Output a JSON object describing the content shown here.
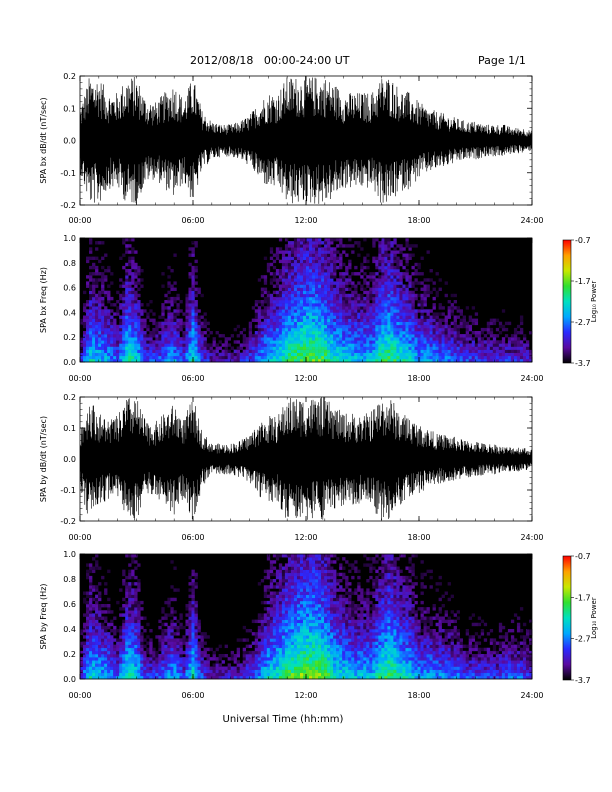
{
  "header": {
    "title": "2012/08/18   00:00-24:00 UT",
    "page": "Page 1/1"
  },
  "colors": {
    "background": "#ffffff",
    "trace": "#000000",
    "spectrogram_background": "#000000"
  },
  "colorbar": {
    "label": "Log₁₀ Power",
    "ticks": [
      "-0.7",
      "-1.7",
      "-2.7",
      "-3.7"
    ],
    "range": [
      -3.7,
      -0.7
    ],
    "stops": [
      "#000000",
      "#5a0aa0",
      "#2a2aff",
      "#00a8ff",
      "#00e0c0",
      "#30e030",
      "#c8e800",
      "#ffa000",
      "#ff0000"
    ]
  },
  "xaxis": {
    "ticks": [
      "00:00",
      "06:00",
      "12:00",
      "18:00",
      "24:00"
    ],
    "label": "Universal Time (hh:mm)"
  },
  "chart_data": [
    {
      "type": "line",
      "ylabel": "SPA bx dB/dt (nT/sec)",
      "xlim": [
        0,
        24
      ],
      "ylim": [
        -0.2,
        0.2
      ],
      "yticks": [
        "0.2",
        "0.1",
        "0.0",
        "-0.1",
        "-0.2"
      ],
      "series": [
        {
          "x": [
            0,
            0.5,
            1,
            1.5,
            2,
            2.5,
            3,
            3.5,
            4,
            4.5,
            5,
            5.5,
            6,
            6.5,
            7,
            7.5,
            8,
            8.5,
            9,
            9.5,
            10,
            10.5,
            11,
            11.5,
            12,
            12.5,
            13,
            13.5,
            14,
            14.5,
            15,
            15.5,
            16,
            16.5,
            17,
            17.5,
            18,
            18.5,
            19,
            19.5,
            20,
            20.5,
            21,
            21.5,
            22,
            22.5,
            23,
            23.5,
            24
          ],
          "amplitude": [
            0.1,
            0.2,
            0.2,
            0.15,
            0.15,
            0.2,
            0.2,
            0.13,
            0.12,
            0.15,
            0.18,
            0.13,
            0.2,
            0.09,
            0.06,
            0.05,
            0.05,
            0.06,
            0.08,
            0.12,
            0.15,
            0.15,
            0.2,
            0.2,
            0.2,
            0.2,
            0.2,
            0.18,
            0.15,
            0.15,
            0.15,
            0.15,
            0.2,
            0.2,
            0.16,
            0.15,
            0.12,
            0.1,
            0.09,
            0.08,
            0.07,
            0.06,
            0.06,
            0.05,
            0.05,
            0.05,
            0.04,
            0.04,
            0.03
          ]
        }
      ]
    },
    {
      "type": "heatmap",
      "ylabel": "SPA bx Freq (Hz)",
      "xlim": [
        0,
        24
      ],
      "ylim": [
        0,
        1.0
      ],
      "yticks": [
        "1.0",
        "0.8",
        "0.6",
        "0.4",
        "0.2",
        "0.0"
      ],
      "activity": [
        0.2,
        0.55,
        0.5,
        0.45,
        0.35,
        0.6,
        0.55,
        0.3,
        0.3,
        0.4,
        0.45,
        0.3,
        0.6,
        0.3,
        0.2,
        0.2,
        0.2,
        0.22,
        0.28,
        0.4,
        0.5,
        0.55,
        0.65,
        0.7,
        0.75,
        0.75,
        0.7,
        0.6,
        0.55,
        0.5,
        0.5,
        0.5,
        0.65,
        0.7,
        0.6,
        0.55,
        0.45,
        0.45,
        0.4,
        0.38,
        0.35,
        0.3,
        0.3,
        0.28,
        0.28,
        0.27,
        0.26,
        0.25,
        0.2
      ]
    },
    {
      "type": "line",
      "ylabel": "SPA by dB/dt (nT/sec)",
      "xlim": [
        0,
        24
      ],
      "ylim": [
        -0.2,
        0.2
      ],
      "yticks": [
        "0.2",
        "0.1",
        "0.0",
        "-0.1",
        "-0.2"
      ],
      "series": [
        {
          "x": [
            0,
            0.5,
            1,
            1.5,
            2,
            2.5,
            3,
            3.5,
            4,
            4.5,
            5,
            5.5,
            6,
            6.5,
            7,
            7.5,
            8,
            8.5,
            9,
            9.5,
            10,
            10.5,
            11,
            11.5,
            12,
            12.5,
            13,
            13.5,
            14,
            14.5,
            15,
            15.5,
            16,
            16.5,
            17,
            17.5,
            18,
            18.5,
            19,
            19.5,
            20,
            20.5,
            21,
            21.5,
            22,
            22.5,
            23,
            23.5,
            24
          ],
          "amplitude": [
            0.1,
            0.2,
            0.15,
            0.13,
            0.14,
            0.2,
            0.2,
            0.12,
            0.12,
            0.15,
            0.18,
            0.13,
            0.2,
            0.09,
            0.05,
            0.05,
            0.05,
            0.06,
            0.08,
            0.12,
            0.14,
            0.14,
            0.2,
            0.2,
            0.2,
            0.2,
            0.2,
            0.17,
            0.15,
            0.15,
            0.14,
            0.16,
            0.2,
            0.2,
            0.15,
            0.14,
            0.11,
            0.1,
            0.08,
            0.08,
            0.07,
            0.06,
            0.06,
            0.05,
            0.05,
            0.04,
            0.04,
            0.04,
            0.03
          ]
        }
      ]
    },
    {
      "type": "heatmap",
      "ylabel": "SPA by Freq (Hz)",
      "xlim": [
        0,
        24
      ],
      "ylim": [
        0,
        1.0
      ],
      "yticks": [
        "1.0",
        "0.8",
        "0.6",
        "0.4",
        "0.2",
        "0.0"
      ],
      "activity": [
        0.25,
        0.55,
        0.5,
        0.45,
        0.35,
        0.6,
        0.55,
        0.3,
        0.3,
        0.4,
        0.45,
        0.3,
        0.6,
        0.3,
        0.22,
        0.22,
        0.22,
        0.25,
        0.3,
        0.4,
        0.55,
        0.6,
        0.7,
        0.75,
        0.8,
        0.8,
        0.75,
        0.6,
        0.55,
        0.5,
        0.5,
        0.5,
        0.65,
        0.72,
        0.6,
        0.55,
        0.45,
        0.45,
        0.42,
        0.4,
        0.38,
        0.32,
        0.32,
        0.3,
        0.3,
        0.32,
        0.35,
        0.33,
        0.3
      ]
    }
  ]
}
